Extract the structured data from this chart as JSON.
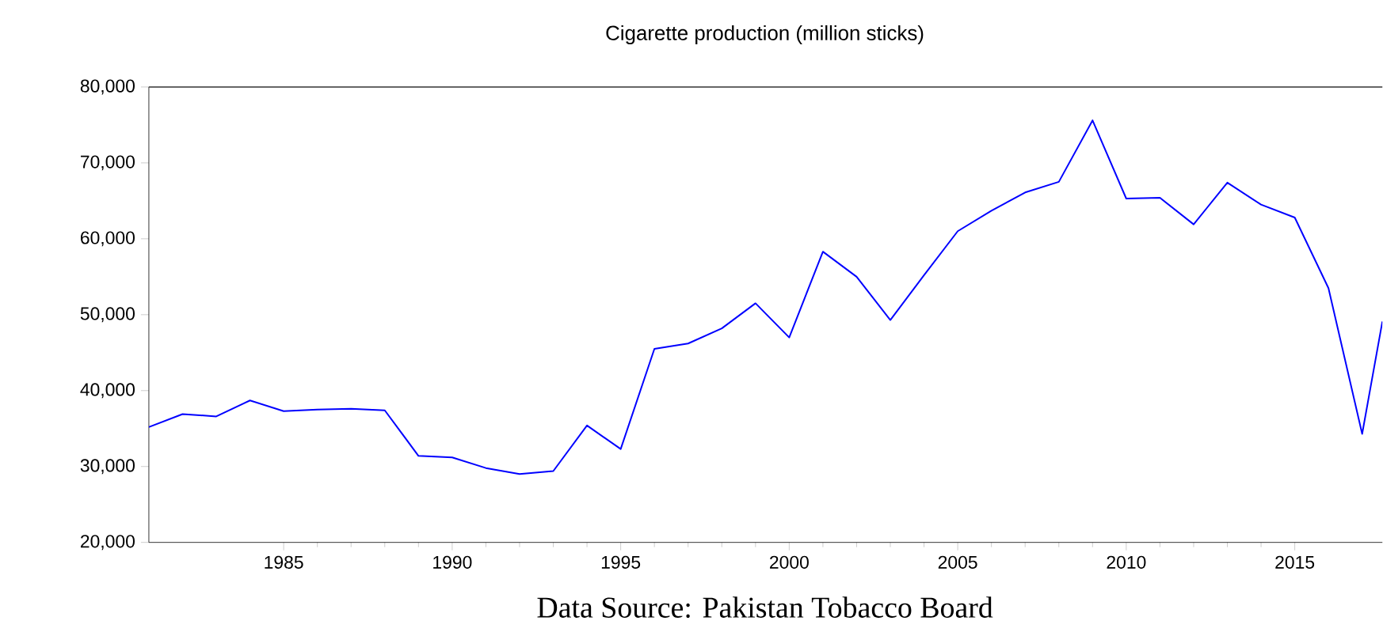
{
  "chart_data": {
    "type": "line",
    "title": "Cigarette production (million sticks)",
    "annotations": [
      "Data Source: Pakistan Tobacco Board"
    ],
    "x": [
      1981,
      1982,
      1983,
      1984,
      1985,
      1986,
      1987,
      1988,
      1989,
      1990,
      1991,
      1992,
      1993,
      1994,
      1995,
      1996,
      1997,
      1998,
      1999,
      2000,
      2001,
      2002,
      2003,
      2004,
      2005,
      2006,
      2007,
      2008,
      2009,
      2010,
      2011,
      2012,
      2013,
      2014,
      2015,
      2016,
      2017,
      2017.6
    ],
    "series": [
      {
        "color": "#0000ff",
        "values": [
          35200,
          36900,
          36600,
          38700,
          37300,
          37500,
          37600,
          37400,
          31400,
          31200,
          29800,
          29000,
          29400,
          35400,
          32300,
          45500,
          46200,
          48200,
          51500,
          47000,
          58300,
          55000,
          49300,
          55200,
          61000,
          63700,
          66100,
          67500,
          75600,
          65300,
          65400,
          61900,
          67400,
          64500,
          62800,
          53500,
          34300,
          49100
        ]
      }
    ],
    "xlim": [
      1981,
      2017.6
    ],
    "ylim": [
      20000,
      80000
    ],
    "xticks": [
      1985,
      1990,
      1995,
      2000,
      2005,
      2010,
      2015
    ],
    "yticks": [
      {
        "value": 20000,
        "label": "20,000"
      },
      {
        "value": 30000,
        "label": "30,000"
      },
      {
        "value": 40000,
        "label": "40,000"
      },
      {
        "value": 50000,
        "label": "50,000"
      },
      {
        "value": 60000,
        "label": "60,000"
      },
      {
        "value": 70000,
        "label": "70,000"
      },
      {
        "value": 80000,
        "label": "80,000"
      }
    ],
    "grid": false,
    "marker": "none",
    "line_style": "solid"
  }
}
